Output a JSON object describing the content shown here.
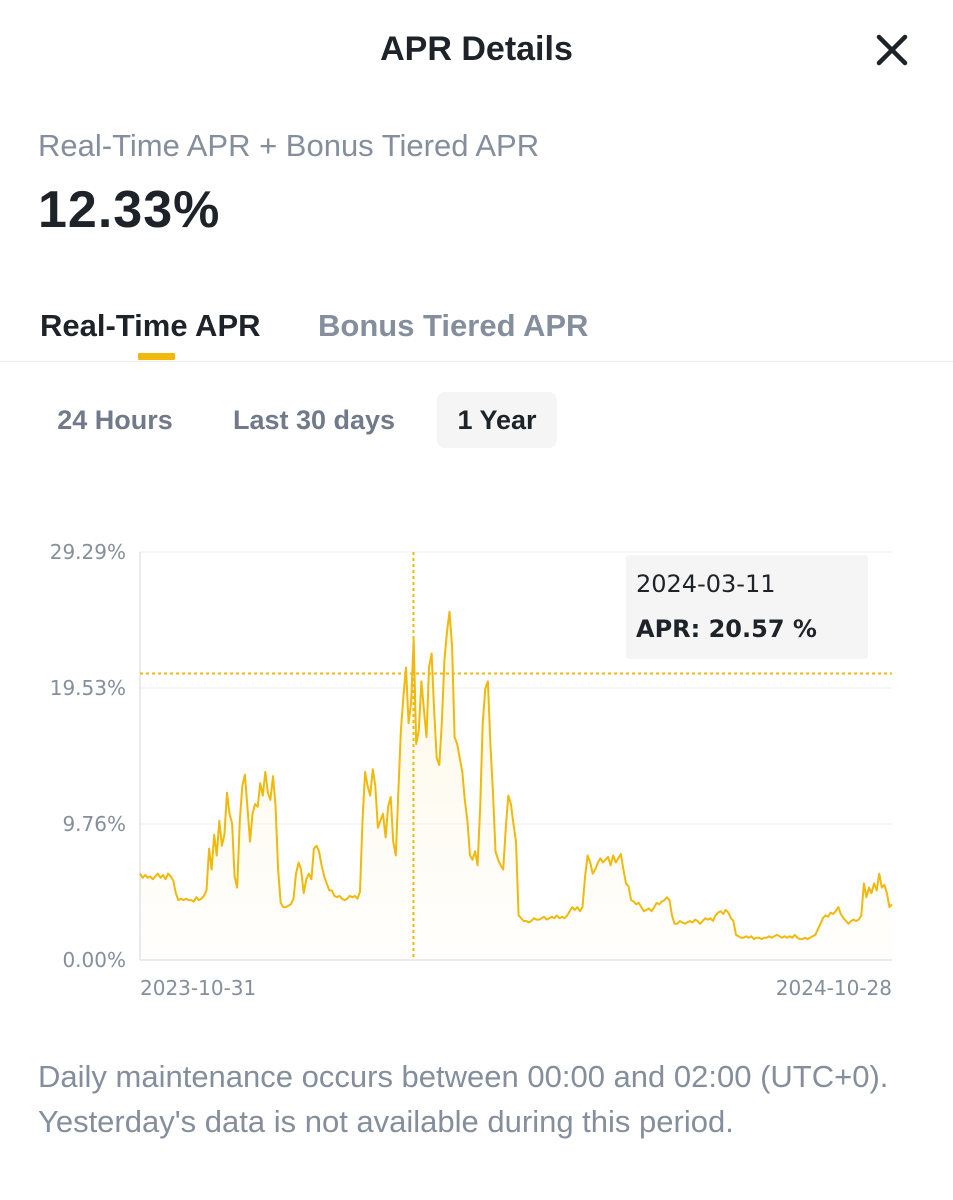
{
  "header": {
    "title": "APR Details",
    "close_icon": "close-icon"
  },
  "summary": {
    "label": "Real-Time APR + Bonus Tiered APR",
    "value": "12.33%"
  },
  "tabs": [
    {
      "label": "Real-Time APR",
      "active": true
    },
    {
      "label": "Bonus Tiered APR",
      "active": false
    }
  ],
  "ranges": [
    {
      "label": "24 Hours",
      "selected": false
    },
    {
      "label": "Last 30 days",
      "selected": false
    },
    {
      "label": "1 Year",
      "selected": true
    }
  ],
  "colors": {
    "accent": "#f0b90b",
    "line": "#f0b90b",
    "text": "#1e2329",
    "muted": "#848e9c"
  },
  "tooltip": {
    "date": "2024-03-11",
    "apr": "APR: 20.57 %"
  },
  "chart_data": {
    "type": "line",
    "y_ticks": [
      "29.29%",
      "19.53%",
      "9.76%",
      "0.00%"
    ],
    "y_tick_values": [
      29.29,
      19.53,
      9.76,
      0
    ],
    "ylim": [
      0,
      29.29
    ],
    "x_ticks": [
      "2023-10-31",
      "2024-10-28"
    ],
    "x_range": [
      "2023-10-31",
      "2024-10-28"
    ],
    "grid": true,
    "crosshair": {
      "date": "2024-03-11",
      "value": 20.57
    },
    "series": [
      {
        "values": [
          6.2,
          5.9,
          6.1,
          5.9,
          6.0,
          5.8,
          6.0,
          6.2,
          5.9,
          6.1,
          5.8,
          6.2,
          6.0,
          5.7,
          4.8,
          4.3,
          4.4,
          4.3,
          4.4,
          4.3,
          4.3,
          4.2,
          4.5,
          4.3,
          4.4,
          4.6,
          5.0,
          8.0,
          6.5,
          9.0,
          7.5,
          10.0,
          8.2,
          9.0,
          12.0,
          10.5,
          9.8,
          6.0,
          5.2,
          10.0,
          12.5,
          13.3,
          11.0,
          8.5,
          10.5,
          11.2,
          11.0,
          12.7,
          11.8,
          13.5,
          12.0,
          11.5,
          13.2,
          11.0,
          6.5,
          4.1,
          3.8,
          3.8,
          3.9,
          4.0,
          4.4,
          6.2,
          7.0,
          6.5,
          4.8,
          5.8,
          6.2,
          5.8,
          8.0,
          8.2,
          7.8,
          6.8,
          6.0,
          5.5,
          5.0,
          5.0,
          4.6,
          4.5,
          4.6,
          4.4,
          4.3,
          4.4,
          4.6,
          4.5,
          4.6,
          4.4,
          4.9,
          10.0,
          13.5,
          12.5,
          11.8,
          13.7,
          12.5,
          9.5,
          10.0,
          10.5,
          8.8,
          11.0,
          11.7,
          8.5,
          7.5,
          12.0,
          16.5,
          19.0,
          21.0,
          17.0,
          18.5,
          23.0,
          15.5,
          16.5,
          20.0,
          18.0,
          16.0,
          21.0,
          22.0,
          18.0,
          14.5,
          14.0,
          17.0,
          21.5,
          23.5,
          25.0,
          22.5,
          16.0,
          15.5,
          14.5,
          13.5,
          11.5,
          10.0,
          7.5,
          7.2,
          7.8,
          6.8,
          11.0,
          17.0,
          19.5,
          20.0,
          15.5,
          12.0,
          7.8,
          7.2,
          6.8,
          6.5,
          9.5,
          11.8,
          11.2,
          9.8,
          8.5,
          3.2,
          3.0,
          2.8,
          2.8,
          2.7,
          2.8,
          3.0,
          2.9,
          2.9,
          3.0,
          3.1,
          2.9,
          3.0,
          3.1,
          3.0,
          3.2,
          3.0,
          3.1,
          3.0,
          3.2,
          3.5,
          3.8,
          3.6,
          3.8,
          3.5,
          3.8,
          6.0,
          7.5,
          7.0,
          6.2,
          6.5,
          7.0,
          7.3,
          7.0,
          7.2,
          7.4,
          6.8,
          7.5,
          7.0,
          7.3,
          7.6,
          6.5,
          5.5,
          5.3,
          4.3,
          4.2,
          4.0,
          4.1,
          3.8,
          3.5,
          3.6,
          3.7,
          3.5,
          3.8,
          4.1,
          4.0,
          4.2,
          4.3,
          4.5,
          4.3,
          3.2,
          2.6,
          2.6,
          2.8,
          2.7,
          2.6,
          2.7,
          2.8,
          2.7,
          2.9,
          2.8,
          2.6,
          2.8,
          3.0,
          2.9,
          3.0,
          2.8,
          3.2,
          3.4,
          3.5,
          3.3,
          3.6,
          3.4,
          3.0,
          2.8,
          1.8,
          1.7,
          1.6,
          1.6,
          1.7,
          1.6,
          1.7,
          1.5,
          1.6,
          1.6,
          1.5,
          1.6,
          1.6,
          1.7,
          1.6,
          1.7,
          1.8,
          1.7,
          1.6,
          1.7,
          1.6,
          1.7,
          1.6,
          1.8,
          1.6,
          1.5,
          1.5,
          1.6,
          1.5,
          1.6,
          1.7,
          1.8,
          2.2,
          2.6,
          3.0,
          3.2,
          3.1,
          3.4,
          3.3,
          3.5,
          3.8,
          3.3,
          3.0,
          2.8,
          2.6,
          2.8,
          2.9,
          2.8,
          2.9,
          3.2,
          5.5,
          4.5,
          5.2,
          4.8,
          5.5,
          5.0,
          6.2,
          5.2,
          5.4,
          4.8,
          3.8,
          4.0
        ]
      }
    ]
  },
  "footnote": "Daily maintenance occurs between 00:00 and 02:00 (UTC+0). Yesterday's data is not available during this period."
}
